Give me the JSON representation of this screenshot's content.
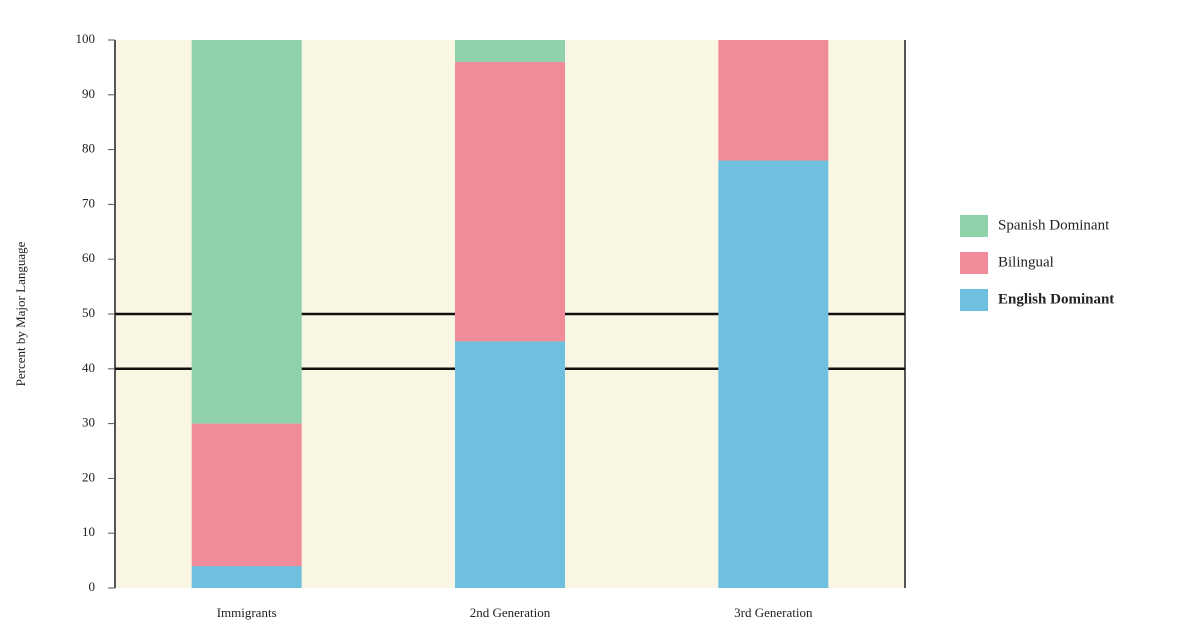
{
  "chart_data": {
    "type": "stacked_bar",
    "y_label": "Percent by Major Language",
    "categories": [
      "Immigrants",
      "2nd Generation",
      "3rd Generation"
    ],
    "series": [
      {
        "name": "English Dominant",
        "color": "#6fbfdf",
        "values": [
          4,
          45,
          78
        ]
      },
      {
        "name": "Bilingual",
        "color": "#f08c9a",
        "values": [
          26,
          51,
          22
        ]
      },
      {
        "name": "Spanish Dominant",
        "color": "#8fd1a8",
        "values": [
          70,
          4,
          0
        ]
      }
    ],
    "ylim": [
      0,
      100
    ],
    "yticks": [
      0,
      10,
      20,
      30,
      40,
      50,
      60,
      70,
      80,
      90,
      100
    ],
    "reference_lines": [
      40,
      50
    ]
  }
}
